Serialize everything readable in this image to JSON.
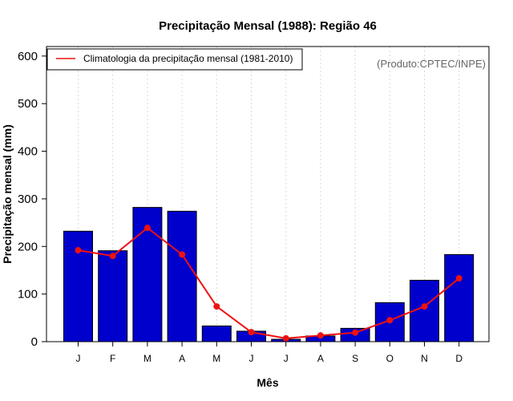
{
  "colors": {
    "bar_fill": "#0000cc",
    "bar_stroke": "#000000",
    "line": "#ee1111",
    "grid": "#d8d8d8",
    "credit_text": "#666666"
  },
  "chart_data": {
    "type": "bar",
    "title": "Precipitação Mensal (1988): Região 46",
    "xlabel": "Mês",
    "ylabel": "Precipitação mensal (mm)",
    "ylim": [
      0,
      620
    ],
    "yticks": [
      0,
      100,
      200,
      300,
      400,
      500,
      600
    ],
    "categories": [
      "J",
      "F",
      "M",
      "A",
      "M",
      "J",
      "J",
      "A",
      "S",
      "O",
      "N",
      "D"
    ],
    "series": [
      {
        "name": "Precipitação mensal (1988)",
        "type": "bar",
        "values": [
          232,
          191,
          282,
          274,
          33,
          22,
          5,
          12,
          28,
          82,
          129,
          183
        ]
      },
      {
        "name": "Climatologia da precipitação mensal (1981-2010)",
        "type": "line",
        "values": [
          192,
          180,
          239,
          183,
          74,
          20,
          7,
          13,
          19,
          45,
          74,
          133
        ]
      }
    ],
    "legend": {
      "position": "top-left",
      "label": "Climatologia da precipitação mensal (1981-2010)"
    },
    "annotation": "(Produto:CPTEC/INPE)",
    "grid": "vertical dotted"
  }
}
